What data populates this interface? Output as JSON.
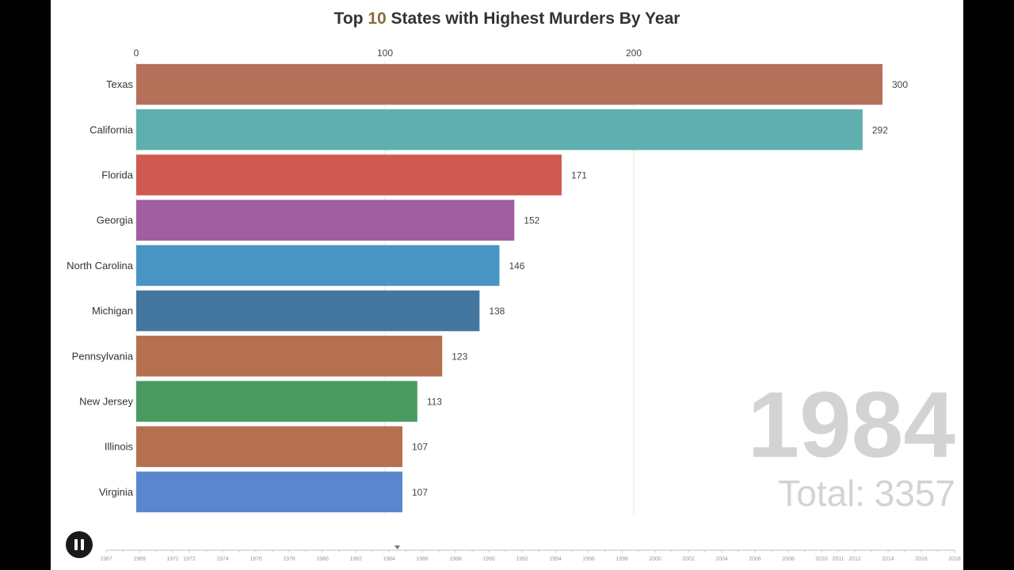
{
  "title": {
    "prefix": "Top",
    "highlight": "10",
    "suffix": "States with Highest Murders By Year",
    "highlight_color": "#8c6a3d"
  },
  "chart_data": {
    "type": "bar",
    "orientation": "horizontal",
    "title": "Top 10 States with Highest Murders By Year",
    "xlim": [
      0,
      300
    ],
    "x_ticks": [
      0,
      100,
      200
    ],
    "grid": true,
    "categories": [
      "Texas",
      "California",
      "Florida",
      "Georgia",
      "North Carolina",
      "Michigan",
      "Pennsylvania",
      "New Jersey",
      "Illinois",
      "Virginia"
    ],
    "values": [
      300,
      292,
      171,
      152,
      146,
      138,
      123,
      113,
      107,
      107
    ],
    "colors": [
      "#b5705a",
      "#5eafae",
      "#cf5a52",
      "#a15ea1",
      "#4895c3",
      "#44779f",
      "#b56f51",
      "#4a9a62",
      "#b56f51",
      "#5986cf"
    ],
    "value_labels": [
      "300",
      "292",
      "171",
      "152",
      "146",
      "138",
      "123",
      "113",
      "107",
      "107"
    ]
  },
  "year": "1984",
  "total": {
    "label": "Total:",
    "value": "3357"
  },
  "controls": {
    "play_state": "pause-icon"
  },
  "timeline": {
    "labels": [
      "1967",
      "1969",
      "1971",
      "1972",
      "1974",
      "1976",
      "1978",
      "1980",
      "1982",
      "1984",
      "1986",
      "1988",
      "1990",
      "1992",
      "1994",
      "1996",
      "1998",
      "2000",
      "2002",
      "2004",
      "2006",
      "2008",
      "2010",
      "2011",
      "2012",
      "2014",
      "2016",
      "2018"
    ],
    "current": "1984"
  }
}
